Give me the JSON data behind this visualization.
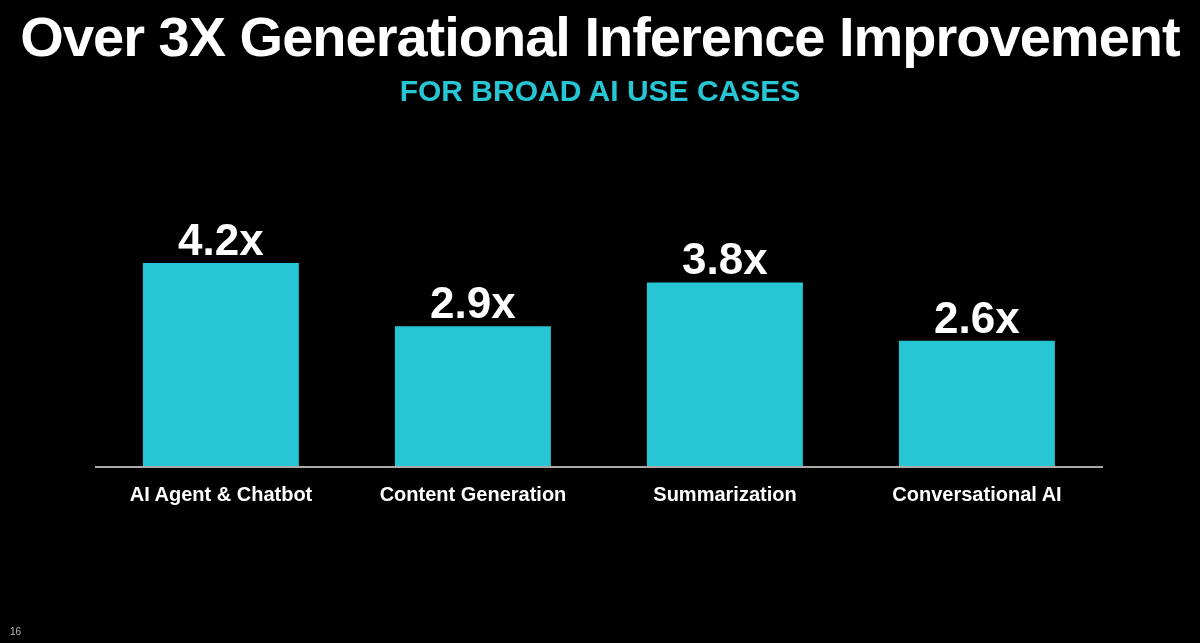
{
  "chart_data": {
    "type": "bar",
    "title": "Over 3X Generational Inference Improvement",
    "subtitle": "FOR BROAD AI USE CASES",
    "categories": [
      "AI Agent & Chatbot",
      "Content Generation",
      "Summarization",
      "Conversational AI"
    ],
    "values": [
      4.2,
      2.9,
      3.8,
      2.6
    ],
    "value_labels": [
      "4.2x",
      "2.9x",
      "3.8x",
      "2.6x"
    ],
    "color": "#26c6d4",
    "annotations": [
      "16"
    ]
  }
}
